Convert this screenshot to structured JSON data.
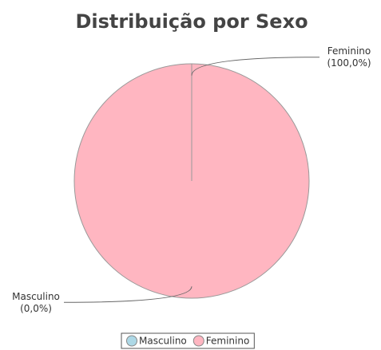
{
  "chart_data": {
    "type": "pie",
    "title": "Distribuição por Sexo",
    "categories": [
      "Masculino",
      "Feminino"
    ],
    "values": [
      0,
      100
    ],
    "value_labels": [
      "(0,0%)",
      "(100,0%)"
    ],
    "colors": [
      "#add8e6",
      "#ffb6c1"
    ],
    "legend": "bottom"
  }
}
